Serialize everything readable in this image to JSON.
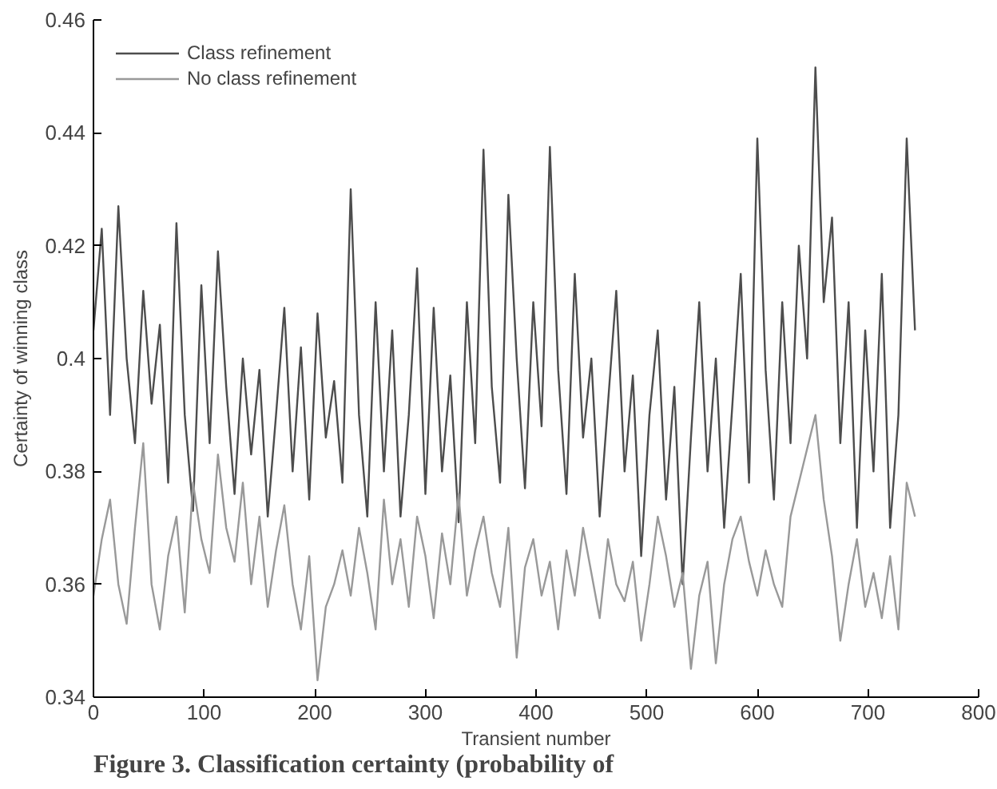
{
  "chart_data": {
    "type": "line",
    "xlabel": "Transient number",
    "ylabel": "Certainty of winning class",
    "annotations": [
      "Figure 3. Classification certainty (probability of"
    ],
    "x": [
      0,
      7.5,
      15,
      22.5,
      30,
      37.5,
      45,
      52.5,
      60,
      67.5,
      75,
      82.5,
      90,
      97.5,
      105,
      112.5,
      120,
      127.5,
      135,
      142.5,
      150,
      157.5,
      165,
      172.5,
      180,
      187.5,
      195,
      202.5,
      210,
      217.5,
      225,
      232.5,
      240,
      247.5,
      255,
      262.5,
      270,
      277.5,
      285,
      292.5,
      300,
      307.5,
      315,
      322.5,
      330,
      337.5,
      345,
      352.5,
      360,
      367.5,
      375,
      382.5,
      390,
      397.5,
      405,
      412.5,
      420,
      427.5,
      435,
      442.5,
      450,
      457.5,
      465,
      472.5,
      480,
      487.5,
      495,
      502.5,
      510,
      517.5,
      525,
      532.5,
      540,
      547.5,
      555,
      562.5,
      570,
      577.5,
      585,
      592.5,
      600,
      607.5,
      615,
      622.5,
      630,
      637.5,
      645,
      652.5,
      660,
      667.5,
      675,
      682.5,
      690,
      697.5,
      705,
      712.5,
      720,
      727.5,
      735,
      742.5
    ],
    "series": [
      {
        "name": "Class refinement",
        "color": "#4d4d4d",
        "values": [
          0.405,
          0.423,
          0.39,
          0.427,
          0.4,
          0.385,
          0.412,
          0.392,
          0.406,
          0.378,
          0.424,
          0.39,
          0.373,
          0.413,
          0.385,
          0.419,
          0.395,
          0.376,
          0.4,
          0.383,
          0.398,
          0.372,
          0.39,
          0.409,
          0.38,
          0.402,
          0.375,
          0.408,
          0.386,
          0.396,
          0.378,
          0.43,
          0.39,
          0.372,
          0.41,
          0.38,
          0.405,
          0.372,
          0.39,
          0.416,
          0.376,
          0.409,
          0.38,
          0.397,
          0.371,
          0.41,
          0.385,
          0.437,
          0.395,
          0.378,
          0.429,
          0.4,
          0.377,
          0.41,
          0.388,
          0.4375,
          0.398,
          0.376,
          0.415,
          0.386,
          0.4,
          0.372,
          0.392,
          0.412,
          0.38,
          0.397,
          0.365,
          0.39,
          0.405,
          0.375,
          0.395,
          0.36,
          0.386,
          0.41,
          0.38,
          0.4,
          0.37,
          0.392,
          0.415,
          0.378,
          0.439,
          0.398,
          0.375,
          0.41,
          0.385,
          0.42,
          0.4,
          0.4516,
          0.41,
          0.425,
          0.385,
          0.41,
          0.37,
          0.405,
          0.38,
          0.415,
          0.37,
          0.39,
          0.439,
          0.405
        ]
      },
      {
        "name": "No class refinement",
        "color": "#999999",
        "values": [
          0.358,
          0.368,
          0.375,
          0.36,
          0.353,
          0.37,
          0.385,
          0.36,
          0.352,
          0.365,
          0.372,
          0.355,
          0.378,
          0.368,
          0.362,
          0.383,
          0.37,
          0.364,
          0.378,
          0.36,
          0.372,
          0.356,
          0.366,
          0.374,
          0.36,
          0.352,
          0.365,
          0.343,
          0.356,
          0.36,
          0.366,
          0.358,
          0.37,
          0.362,
          0.352,
          0.375,
          0.36,
          0.368,
          0.356,
          0.372,
          0.365,
          0.354,
          0.369,
          0.36,
          0.376,
          0.358,
          0.366,
          0.372,
          0.362,
          0.356,
          0.37,
          0.347,
          0.363,
          0.368,
          0.358,
          0.364,
          0.352,
          0.366,
          0.358,
          0.37,
          0.362,
          0.354,
          0.368,
          0.36,
          0.357,
          0.364,
          0.35,
          0.36,
          0.372,
          0.365,
          0.356,
          0.362,
          0.345,
          0.358,
          0.364,
          0.346,
          0.36,
          0.368,
          0.372,
          0.364,
          0.358,
          0.366,
          0.36,
          0.356,
          0.372,
          0.378,
          0.384,
          0.39,
          0.375,
          0.365,
          0.35,
          0.36,
          0.368,
          0.356,
          0.362,
          0.354,
          0.365,
          0.352,
          0.378,
          0.372
        ]
      }
    ],
    "xlim": [
      0,
      800
    ],
    "xticks": [
      0,
      100,
      200,
      300,
      400,
      500,
      600,
      700,
      800
    ],
    "ylim": [
      0.34,
      0.46
    ],
    "yticks": [
      0.34,
      0.36,
      0.38,
      {
        "value": 0.4,
        "label": "0.4"
      },
      0.42,
      0.44,
      0.46
    ],
    "grid": false,
    "legend": "top left",
    "line_style": "solid",
    "marker": "none"
  }
}
